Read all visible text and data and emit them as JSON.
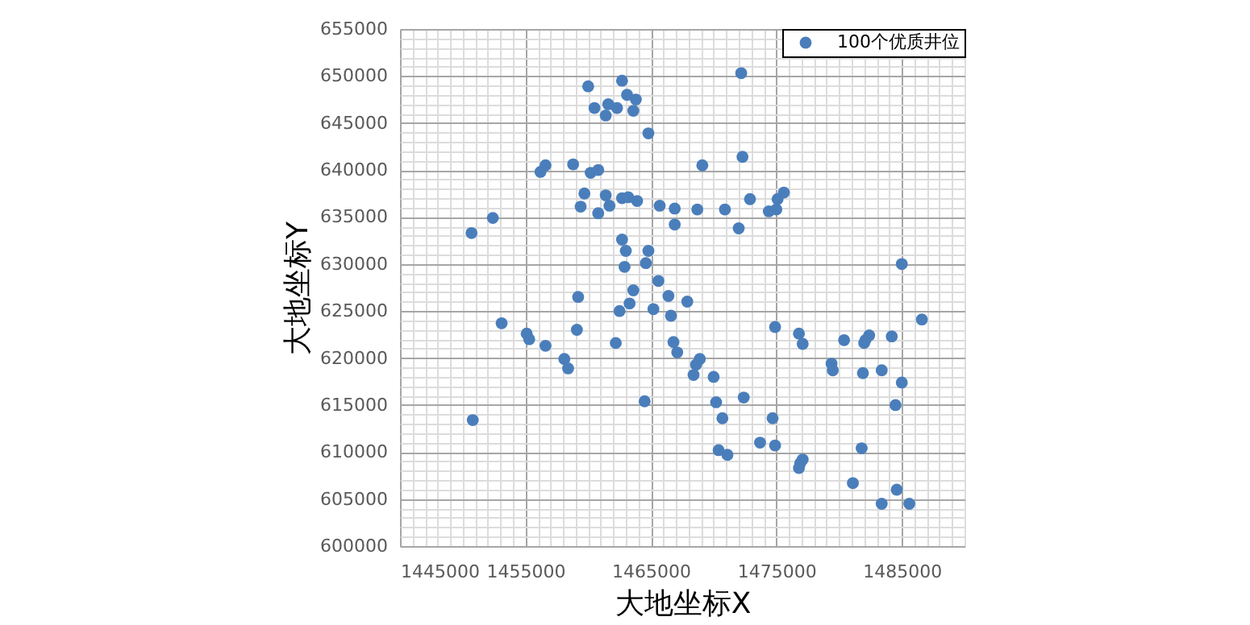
{
  "chart_data": {
    "type": "scatter",
    "xlabel": "大地坐标X",
    "ylabel": "大地坐标Y",
    "xlim": [
      1445000,
      1490000
    ],
    "ylim": [
      600000,
      655000
    ],
    "xticks": [
      1445000,
      {
        "value": 1446000,
        "label": null
      },
      {
        "value": 1447000,
        "label": null
      },
      {
        "value": 1448000,
        "label": null
      },
      {
        "value": 1449000,
        "label": null
      },
      {
        "value": 1450000,
        "label": null
      },
      {
        "value": 1451000,
        "label": null
      },
      {
        "value": 1452000,
        "label": null
      },
      {
        "value": 1453000,
        "label": null
      },
      {
        "value": 1454000,
        "label": null
      },
      1455000,
      {
        "value": 1456000,
        "label": null
      },
      {
        "value": 1457000,
        "label": null
      },
      {
        "value": 1458000,
        "label": null
      },
      {
        "value": 1459000,
        "label": null
      },
      {
        "value": 1460000,
        "label": null
      },
      {
        "value": 1461000,
        "label": null
      },
      {
        "value": 1462000,
        "label": null
      },
      {
        "value": 1463000,
        "label": null
      },
      {
        "value": 1464000,
        "label": null
      },
      1465000,
      {
        "value": 1466000,
        "label": null
      },
      {
        "value": 1467000,
        "label": null
      },
      {
        "value": 1468000,
        "label": null
      },
      {
        "value": 1469000,
        "label": null
      },
      {
        "value": 1470000,
        "label": null
      },
      {
        "value": 1471000,
        "label": null
      },
      {
        "value": 1472000,
        "label": null
      },
      {
        "value": 1473000,
        "label": null
      },
      {
        "value": 1474000,
        "label": null
      },
      1475000,
      {
        "value": 1476000,
        "label": null
      },
      {
        "value": 1477000,
        "label": null
      },
      {
        "value": 1478000,
        "label": null
      },
      {
        "value": 1479000,
        "label": null
      },
      {
        "value": 1480000,
        "label": null
      },
      {
        "value": 1481000,
        "label": null
      },
      {
        "value": 1482000,
        "label": null
      },
      {
        "value": 1483000,
        "label": null
      },
      {
        "value": 1484000,
        "label": null
      },
      1485000,
      {
        "value": 1486000,
        "label": null
      },
      {
        "value": 1487000,
        "label": null
      },
      {
        "value": 1488000,
        "label": null
      },
      {
        "value": 1489000,
        "label": null
      }
    ],
    "yticks": [
      600000,
      {
        "value": 601000,
        "label": null
      },
      {
        "value": 602000,
        "label": null
      },
      {
        "value": 603000,
        "label": null
      },
      {
        "value": 604000,
        "label": null
      },
      605000,
      {
        "value": 606000,
        "label": null
      },
      {
        "value": 607000,
        "label": null
      },
      {
        "value": 608000,
        "label": null
      },
      {
        "value": 609000,
        "label": null
      },
      610000,
      {
        "value": 611000,
        "label": null
      },
      {
        "value": 612000,
        "label": null
      },
      {
        "value": 613000,
        "label": null
      },
      {
        "value": 614000,
        "label": null
      },
      615000,
      {
        "value": 616000,
        "label": null
      },
      {
        "value": 617000,
        "label": null
      },
      {
        "value": 618000,
        "label": null
      },
      {
        "value": 619000,
        "label": null
      },
      620000,
      {
        "value": 621000,
        "label": null
      },
      {
        "value": 622000,
        "label": null
      },
      {
        "value": 623000,
        "label": null
      },
      {
        "value": 624000,
        "label": null
      },
      625000,
      {
        "value": 626000,
        "label": null
      },
      {
        "value": 627000,
        "label": null
      },
      {
        "value": 628000,
        "label": null
      },
      {
        "value": 629000,
        "label": null
      },
      630000,
      {
        "value": 631000,
        "label": null
      },
      {
        "value": 632000,
        "label": null
      },
      {
        "value": 633000,
        "label": null
      },
      {
        "value": 634000,
        "label": null
      },
      635000,
      {
        "value": 636000,
        "label": null
      },
      {
        "value": 637000,
        "label": null
      },
      {
        "value": 638000,
        "label": null
      },
      {
        "value": 639000,
        "label": null
      },
      640000,
      {
        "value": 641000,
        "label": null
      },
      {
        "value": 642000,
        "label": null
      },
      {
        "value": 643000,
        "label": null
      },
      {
        "value": 644000,
        "label": null
      },
      645000,
      {
        "value": 646000,
        "label": null
      },
      {
        "value": 647000,
        "label": null
      },
      {
        "value": 648000,
        "label": null
      },
      {
        "value": 649000,
        "label": null
      },
      650000,
      {
        "value": 651000,
        "label": null
      },
      {
        "value": 652000,
        "label": null
      },
      {
        "value": 653000,
        "label": null
      },
      {
        "value": 654000,
        "label": null
      },
      655000
    ],
    "grid": true,
    "legend": "top right",
    "marker": "circle",
    "series": [
      {
        "name": "100个优质井位",
        "color": "#4a7ebb",
        "x": [
          1460000,
          1462700,
          1463100,
          1463800,
          1463600,
          1460500,
          1461600,
          1462300,
          1461400,
          1464800,
          1456200,
          1456600,
          1458800,
          1460200,
          1460800,
          1459700,
          1459400,
          1460800,
          1461400,
          1461700,
          1462700,
          1463200,
          1463900,
          1465700,
          1452400,
          1450700,
          1462700,
          1463000,
          1462900,
          1464800,
          1464600,
          1465600,
          1463600,
          1472200,
          1472300,
          1469100,
          1466900,
          1466900,
          1468700,
          1470900,
          1472900,
          1472000,
          1474400,
          1475000,
          1475100,
          1475600,
          1485000,
          1459200,
          1453100,
          1455100,
          1455300,
          1456600,
          1459100,
          1458100,
          1458400,
          1462200,
          1462500,
          1463300,
          1465200,
          1466400,
          1464500,
          1450800,
          1467900,
          1466600,
          1466800,
          1467100,
          1468900,
          1468600,
          1468400,
          1470000,
          1470200,
          1470700,
          1472400,
          1470400,
          1471100,
          1473700,
          1474900,
          1474700,
          1474900,
          1476800,
          1477100,
          1476900,
          1477100,
          1476800,
          1480400,
          1479400,
          1479500,
          1481900,
          1482100,
          1482400,
          1482000,
          1483400,
          1484200,
          1485000,
          1484500,
          1486600,
          1481800,
          1481100,
          1484600,
          1483400,
          1485600
        ],
        "values": [
          648900,
          649500,
          648000,
          647500,
          646300,
          646600,
          647000,
          646600,
          645800,
          643900,
          639800,
          640500,
          640600,
          639700,
          640000,
          637500,
          636100,
          635400,
          637300,
          636200,
          637000,
          637100,
          636700,
          636200,
          634900,
          633300,
          632600,
          631400,
          629700,
          631400,
          630100,
          628200,
          627200,
          650300,
          641400,
          640500,
          635900,
          634200,
          635800,
          635800,
          636900,
          633800,
          635600,
          635800,
          636900,
          637600,
          630000,
          626500,
          623700,
          622600,
          622000,
          621300,
          623000,
          619900,
          618900,
          621600,
          625000,
          625800,
          625200,
          626600,
          615400,
          613400,
          626000,
          624500,
          621700,
          620600,
          619900,
          619300,
          618200,
          618000,
          615300,
          613600,
          615800,
          610200,
          609700,
          611000,
          610700,
          613600,
          623300,
          622600,
          621500,
          608800,
          609200,
          608300,
          621900,
          619400,
          618700,
          618400,
          621900,
          622400,
          621600,
          618700,
          622300,
          617400,
          615000,
          624100,
          610400,
          606700,
          606000,
          604500,
          604500
        ]
      }
    ]
  }
}
